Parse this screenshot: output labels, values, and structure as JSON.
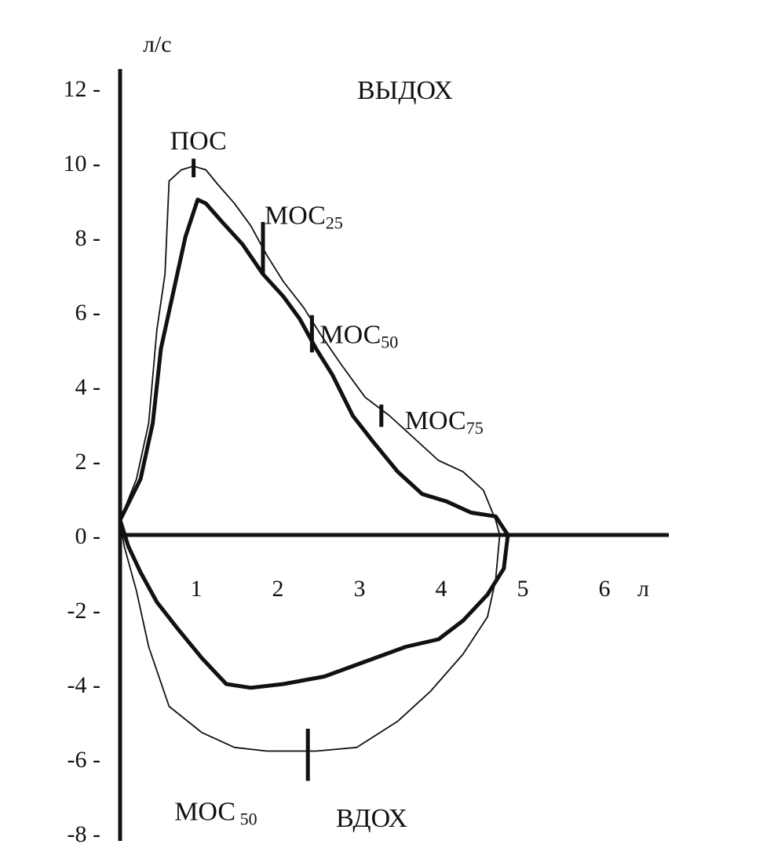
{
  "chart_data": {
    "type": "line",
    "y_unit": "л/с",
    "x_unit": "л",
    "xlim": [
      0,
      6.5
    ],
    "ylim": [
      -8,
      12.8
    ],
    "x_ticks": [
      "1",
      "2",
      "3",
      "4",
      "5",
      "6"
    ],
    "y_ticks": [
      "12 -",
      "10 -",
      "8 -",
      "6 -",
      "4 -",
      "2 -",
      "0 -",
      "-2 -",
      "-4 -",
      "-6 -",
      "-8 -"
    ],
    "y_tick_values": [
      12,
      10,
      8,
      6,
      4,
      2,
      0,
      -2,
      -4,
      -6,
      -8
    ],
    "region_labels": {
      "expiration": "ВЫДОХ",
      "inspiration": "ВДОХ"
    },
    "annotations": [
      {
        "text": "ПОС",
        "sub": "",
        "x": 0.9,
        "y": 9.8,
        "marker_y": [
          9.6,
          10.1
        ]
      },
      {
        "text": "МОС",
        "sub": "25",
        "x": 1.75,
        "y": 7.8,
        "marker_y": [
          7.0,
          8.4
        ]
      },
      {
        "text": "МОС",
        "sub": "50",
        "x": 2.35,
        "y": 5.4,
        "marker_y": [
          4.9,
          5.9
        ]
      },
      {
        "text": "МОС",
        "sub": "75",
        "x": 3.2,
        "y": 3.1,
        "marker_y": [
          2.9,
          3.5
        ]
      },
      {
        "text": "МОС",
        "sub": " 50",
        "x": 2.3,
        "y": -5.8,
        "marker_y": [
          -6.6,
          -5.2
        ]
      }
    ],
    "series": [
      {
        "style": "thin",
        "points": [
          [
            0,
            0.4
          ],
          [
            0.2,
            1.5
          ],
          [
            0.35,
            3
          ],
          [
            0.45,
            5.5
          ],
          [
            0.55,
            7
          ],
          [
            0.6,
            9.5
          ],
          [
            0.75,
            9.8
          ],
          [
            0.9,
            9.9
          ],
          [
            1.05,
            9.8
          ],
          [
            1.2,
            9.4
          ],
          [
            1.4,
            8.9
          ],
          [
            1.6,
            8.3
          ],
          [
            1.8,
            7.5
          ],
          [
            2.0,
            6.8
          ],
          [
            2.25,
            6.1
          ],
          [
            2.45,
            5.4
          ],
          [
            2.7,
            4.6
          ],
          [
            3.0,
            3.7
          ],
          [
            3.3,
            3.2
          ],
          [
            3.6,
            2.6
          ],
          [
            3.9,
            2.0
          ],
          [
            4.2,
            1.7
          ],
          [
            4.45,
            1.2
          ],
          [
            4.6,
            0.4
          ],
          [
            4.65,
            0.0
          ],
          [
            4.6,
            -1.2
          ],
          [
            4.5,
            -2.2
          ],
          [
            4.2,
            -3.2
          ],
          [
            3.8,
            -4.2
          ],
          [
            3.4,
            -5.0
          ],
          [
            2.9,
            -5.7
          ],
          [
            2.4,
            -5.8
          ],
          [
            1.8,
            -5.8
          ],
          [
            1.4,
            -5.7
          ],
          [
            1.0,
            -5.3
          ],
          [
            0.6,
            -4.6
          ],
          [
            0.35,
            -3.0
          ],
          [
            0.2,
            -1.5
          ],
          [
            0.05,
            -0.3
          ],
          [
            0,
            0.4
          ]
        ]
      },
      {
        "style": "thick",
        "points": [
          [
            0,
            0.4
          ],
          [
            0.25,
            1.5
          ],
          [
            0.4,
            3.0
          ],
          [
            0.5,
            5.0
          ],
          [
            0.65,
            6.5
          ],
          [
            0.8,
            8.0
          ],
          [
            0.95,
            9.0
          ],
          [
            1.05,
            8.9
          ],
          [
            1.25,
            8.4
          ],
          [
            1.5,
            7.8
          ],
          [
            1.75,
            7.0
          ],
          [
            2.0,
            6.4
          ],
          [
            2.2,
            5.8
          ],
          [
            2.4,
            5.0
          ],
          [
            2.6,
            4.3
          ],
          [
            2.85,
            3.2
          ],
          [
            3.1,
            2.5
          ],
          [
            3.4,
            1.7
          ],
          [
            3.7,
            1.1
          ],
          [
            4.0,
            0.9
          ],
          [
            4.3,
            0.6
          ],
          [
            4.6,
            0.5
          ],
          [
            4.75,
            0.0
          ],
          [
            4.7,
            -0.9
          ],
          [
            4.5,
            -1.6
          ],
          [
            4.2,
            -2.3
          ],
          [
            3.9,
            -2.8
          ],
          [
            3.5,
            -3.0
          ],
          [
            3.0,
            -3.4
          ],
          [
            2.5,
            -3.8
          ],
          [
            2.0,
            -4.0
          ],
          [
            1.6,
            -4.1
          ],
          [
            1.3,
            -4.0
          ],
          [
            1.0,
            -3.3
          ],
          [
            0.7,
            -2.5
          ],
          [
            0.45,
            -1.8
          ],
          [
            0.25,
            -1.0
          ],
          [
            0.1,
            -0.3
          ],
          [
            0,
            0.4
          ]
        ]
      }
    ]
  }
}
